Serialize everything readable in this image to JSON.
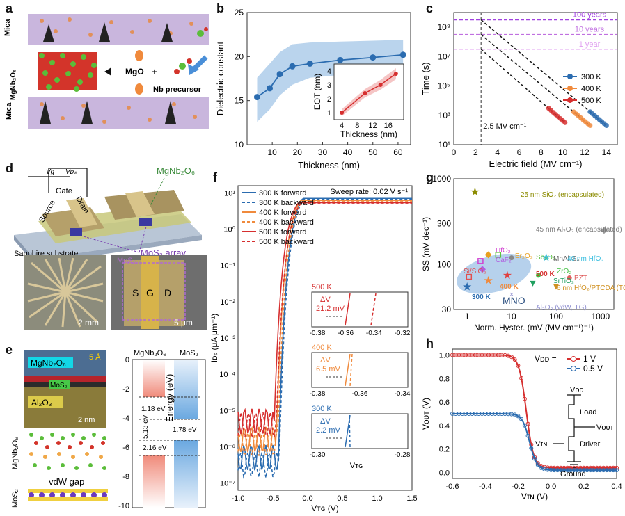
{
  "panels": {
    "a": {
      "label": "a",
      "texts": {
        "mica_top": "Mica",
        "mgnb": "MgNb₂O₆",
        "mica_bot": "Mica",
        "mgo": "MgO",
        "plus": "+",
        "nb": "Nb precursor"
      },
      "colors": {
        "mica": "#c9b6dd",
        "crystal_red": "#d3342a",
        "crystal_green": "#5bbd3a",
        "orange": "#f08a3c",
        "arrow": "#4a8fd8"
      }
    },
    "b": {
      "label": "b",
      "inset_xlabel": "Thickness (nm)",
      "inset_ylabel": "EOT (nm)",
      "inset_xticks": [
        "4",
        "8",
        "12",
        "16"
      ],
      "inset_yticks": [
        "1",
        "2",
        "3",
        "4"
      ]
    },
    "c": {
      "label": "c",
      "annotations": [
        "100 years",
        "10 years",
        "1 year",
        "2.5 MV cm⁻¹"
      ],
      "legend": [
        "300 K",
        "400 K",
        "500 K"
      ]
    },
    "d": {
      "label": "d",
      "texts": {
        "vg": "Vɡ",
        "vds": "Vᴅₛ",
        "gate": "Gate",
        "source": "Source",
        "drain": "Drain",
        "mgnb": "MgNb₂O₆",
        "substrate": "Sapphire substrate",
        "array": "MoS₂ array",
        "scale1": "2 mm",
        "scale2": "5 μm",
        "mos2": "MoS₂",
        "s": "S",
        "g": "G",
        "dd": "D"
      }
    },
    "e": {
      "label": "e",
      "texts": {
        "mgnb": "MgNb₂O₆",
        "mos2": "MoS₂",
        "al2o3": "Al₂O₃",
        "five": "5 Å",
        "scale": "2 nm",
        "vdw": "vdW gap",
        "side_mgnb": "MgNb₂O₆",
        "side_mos2": "MoS₂",
        "col1": "MgNb₂O₆",
        "col2": "MoS₂",
        "e1": "1.18 eV",
        "e2": "1.78 eV",
        "e3": "5.13 eV",
        "e4": "2.16 eV"
      }
    },
    "f": {
      "label": "f",
      "sweep": "Sweep rate: 0.02 V s⁻¹",
      "insets": [
        {
          "temp": "500 K",
          "dv": "ΔV",
          "val": "21.2 mV",
          "ticks": [
            "-0.38",
            "-0.36",
            "-0.34",
            "-0.32"
          ],
          "color": "#d62f2f"
        },
        {
          "temp": "400 K",
          "dv": "ΔV",
          "val": "6.5 mV",
          "ticks": [
            "-0.38",
            "-0.36",
            "-0.34"
          ],
          "color": "#f08a3c"
        },
        {
          "temp": "300 K",
          "dv": "ΔV",
          "val": "2.2 mV",
          "ticks": [
            "-0.30",
            "-0.28"
          ],
          "color": "#2b6cb0"
        }
      ],
      "inset_xlabel": "Vᴛɢ"
    },
    "g": {
      "label": "g",
      "labels": [
        "25 nm SiO₂ (encapsulated)",
        "45 nm Al₂O₃ (encapsulated)",
        "HfO₂",
        "Er₂O₃",
        "Sb₂O₃",
        "MnAl₂S₄",
        "CaF₂",
        "40 nm HfO₂",
        "Si/SiO₂",
        "500 K",
        "ZrO₂",
        "PZT",
        "SrTiO₃",
        "400 K",
        "6 nm HfO₂/PTCDA (TG)",
        "300 K",
        "MNO",
        "Al₂O₃ (vdW, TG)"
      ]
    },
    "h": {
      "label": "h",
      "legend_title": "Vᴅᴅ =",
      "legend": [
        "1 V",
        "0.5 V"
      ],
      "circuit": {
        "vdd": "Vᴅᴅ",
        "load": "Load",
        "vout": "Vᴏᴜᴛ",
        "vin": "Vɪɴ",
        "driver": "Driver",
        "ground": "Ground"
      }
    }
  },
  "chart_data": [
    {
      "id": "b",
      "type": "line",
      "xlabel": "Thickness (nm)",
      "ylabel": "Dielectric constant",
      "xlim": [
        0,
        65
      ],
      "ylim": [
        10,
        25
      ],
      "xticks": [
        10,
        20,
        30,
        40,
        50,
        60
      ],
      "yticks": [
        10,
        15,
        20,
        25
      ],
      "x": [
        4,
        9,
        13,
        18,
        25,
        37,
        50,
        62
      ],
      "y": [
        15.4,
        16.4,
        18.0,
        18.9,
        19.2,
        19.6,
        19.9,
        20.2
      ],
      "band_low": [
        12.6,
        14.0,
        15.6,
        16.8,
        17.6,
        17.9,
        18.2,
        18.5
      ],
      "band_high": [
        17.6,
        19.2,
        20.5,
        21.4,
        21.6,
        21.7,
        21.8,
        21.9
      ],
      "inset": {
        "x": [
          4,
          10,
          14,
          18
        ],
        "y": [
          1.0,
          2.4,
          3.0,
          3.8
        ],
        "xlim": [
          2,
          20
        ],
        "ylim": [
          0.5,
          4.5
        ]
      }
    },
    {
      "id": "c",
      "type": "scatter",
      "xlabel": "Electric field (MV cm⁻¹)",
      "ylabel": "Time (s)",
      "xlim": [
        0,
        15
      ],
      "ylog": [
        1,
        10
      ],
      "xticks": [
        0,
        2,
        4,
        6,
        8,
        10,
        12,
        14
      ],
      "ytick_labels": [
        "10¹",
        "10³",
        "10⁵",
        "10⁷",
        "10⁹"
      ],
      "ytick_exps": [
        1,
        3,
        5,
        7,
        9
      ],
      "hlines": [
        {
          "exp": 9.5,
          "label": "100 years"
        },
        {
          "exp": 8.5,
          "label": "10 years"
        },
        {
          "exp": 7.5,
          "label": "1 year"
        }
      ],
      "vline": 2.5,
      "series": [
        {
          "name": "300 K",
          "color": "#2b6cb0",
          "x0": 2.5,
          "e0": 9.5,
          "x1": 14,
          "e1": 2.3,
          "data_from": 12.5
        },
        {
          "name": "400 K",
          "color": "#f08a3c",
          "x0": 2.5,
          "e0": 8.5,
          "x1": 12.5,
          "e1": 2.3,
          "data_from": 11
        },
        {
          "name": "500 K",
          "color": "#d62f2f",
          "x0": 2.5,
          "e0": 7.5,
          "x1": 10.2,
          "e1": 2.5,
          "data_from": 8.7
        }
      ]
    },
    {
      "id": "f",
      "type": "line",
      "xlabel": "Vᴛɢ (V)",
      "ylabel": "Iᴅₛ (μA μm⁻¹)",
      "xlim": [
        -1.0,
        1.5
      ],
      "xticks": [
        -1.0,
        -0.5,
        0.0,
        0.5,
        1.0,
        1.5
      ],
      "xtick_labels": [
        "-1.0",
        "-0.5",
        "0.0",
        "0.5",
        "1.0",
        "1.5"
      ],
      "ytick_labels": [
        "10¹",
        "10⁰",
        "10⁻¹",
        "10⁻²",
        "10⁻³",
        "10⁻⁴",
        "10⁻⁵",
        "10⁻⁶",
        "10⁻⁷"
      ],
      "ytick_exps": [
        1,
        0,
        -1,
        -2,
        -3,
        -4,
        -5,
        -6,
        -7
      ],
      "ylog": [
        -7.2,
        1.2
      ],
      "series": [
        {
          "name": "300 K forward",
          "color": "#2b6cb0",
          "dash": false,
          "floor": -6.3,
          "vth": -0.42
        },
        {
          "name": "300 K backward",
          "color": "#2b6cb0",
          "dash": true,
          "floor": -6.5,
          "vth": -0.41
        },
        {
          "name": "400 K forward",
          "color": "#f08a3c",
          "dash": false,
          "floor": -5.8,
          "vth": -0.45
        },
        {
          "name": "400 K backward",
          "color": "#f08a3c",
          "dash": true,
          "floor": -5.9,
          "vth": -0.43
        },
        {
          "name": "500 K forward",
          "color": "#d62f2f",
          "dash": false,
          "floor": -5.3,
          "vth": -0.48
        },
        {
          "name": "500 K backward",
          "color": "#d62f2f",
          "dash": true,
          "floor": -5.4,
          "vth": -0.45
        }
      ]
    },
    {
      "id": "g",
      "type": "scatter",
      "xlabel": "Norm. Hyster. (mV (MV cm⁻¹)⁻¹)",
      "ylabel": "SS (mV dec⁻¹)",
      "xlog": [
        0,
        3.3
      ],
      "ylog": [
        1.477,
        3.0
      ],
      "xtick_labels": [
        "1",
        "10",
        "100",
        "1000"
      ],
      "xtick_exps": [
        0,
        1,
        2,
        3
      ],
      "ytick_labels": [
        "30",
        "100",
        "300",
        "1000"
      ],
      "ytick_vals": [
        30,
        100,
        300,
        1000
      ],
      "points": [
        {
          "x": 1.5,
          "y": 700,
          "color": "#8b8b00",
          "marker": "star"
        },
        {
          "x": 1200,
          "y": 250,
          "color": "#999999",
          "marker": "diamond"
        },
        {
          "x": 2.0,
          "y": 110,
          "color": "#d040d0",
          "marker": "square"
        },
        {
          "x": 3.0,
          "y": 130,
          "color": "#e8a020",
          "marker": "diamond"
        },
        {
          "x": 5.0,
          "y": 130,
          "color": "#60c040",
          "marker": "square"
        },
        {
          "x": 10,
          "y": 120,
          "color": "#888888",
          "marker": "circle"
        },
        {
          "x": 2.2,
          "y": 88,
          "color": "#b060e0",
          "marker": "diamond"
        },
        {
          "x": 60,
          "y": 120,
          "color": "#40c0e0",
          "marker": "star"
        },
        {
          "x": 1.1,
          "y": 72,
          "color": "#e05050",
          "marker": "square"
        },
        {
          "x": 8,
          "y": 75,
          "color": "#e04040",
          "marker": "star"
        },
        {
          "x": 40,
          "y": 75,
          "color": "#40c040",
          "marker": "circle"
        },
        {
          "x": 200,
          "y": 70,
          "color": "#e06060",
          "marker": "circle"
        },
        {
          "x": 30,
          "y": 60,
          "color": "#20a060",
          "marker": "triangle"
        },
        {
          "x": 3,
          "y": 65,
          "color": "#f08a3c",
          "marker": "star"
        },
        {
          "x": 100,
          "y": 55,
          "color": "#d09020",
          "marker": "triangle"
        },
        {
          "x": 1.0,
          "y": 55,
          "color": "#2b6cb0",
          "marker": "star"
        },
        {
          "x": 10,
          "y": 45,
          "color": "#9090d0",
          "marker": "cross"
        }
      ]
    },
    {
      "id": "h",
      "type": "line",
      "xlabel": "Vɪɴ (V)",
      "ylabel": "Vᴏᴜᴛ (V)",
      "xlim": [
        -0.6,
        0.4
      ],
      "ylim": [
        -0.05,
        1.05
      ],
      "xticks": [
        -0.6,
        -0.4,
        -0.2,
        0.0,
        0.2,
        0.4
      ],
      "xtick_labels": [
        "-0.6",
        "-0.4",
        "-0.2",
        "0.0",
        "0.2",
        "0.4"
      ],
      "yticks": [
        0.0,
        0.2,
        0.4,
        0.6,
        0.8,
        1.0
      ],
      "ytick_labels": [
        "0.0",
        "0.2",
        "0.4",
        "0.6",
        "0.8",
        "1.0"
      ],
      "series": [
        {
          "name": "1 V",
          "color": "#d62f2f",
          "vhigh": 1.0,
          "vlow": 0.04,
          "mid": -0.15,
          "k": 45
        },
        {
          "name": "0.5 V",
          "color": "#2b6cb0",
          "vhigh": 0.5,
          "vlow": 0.02,
          "mid": -0.13,
          "k": 45
        }
      ]
    }
  ]
}
